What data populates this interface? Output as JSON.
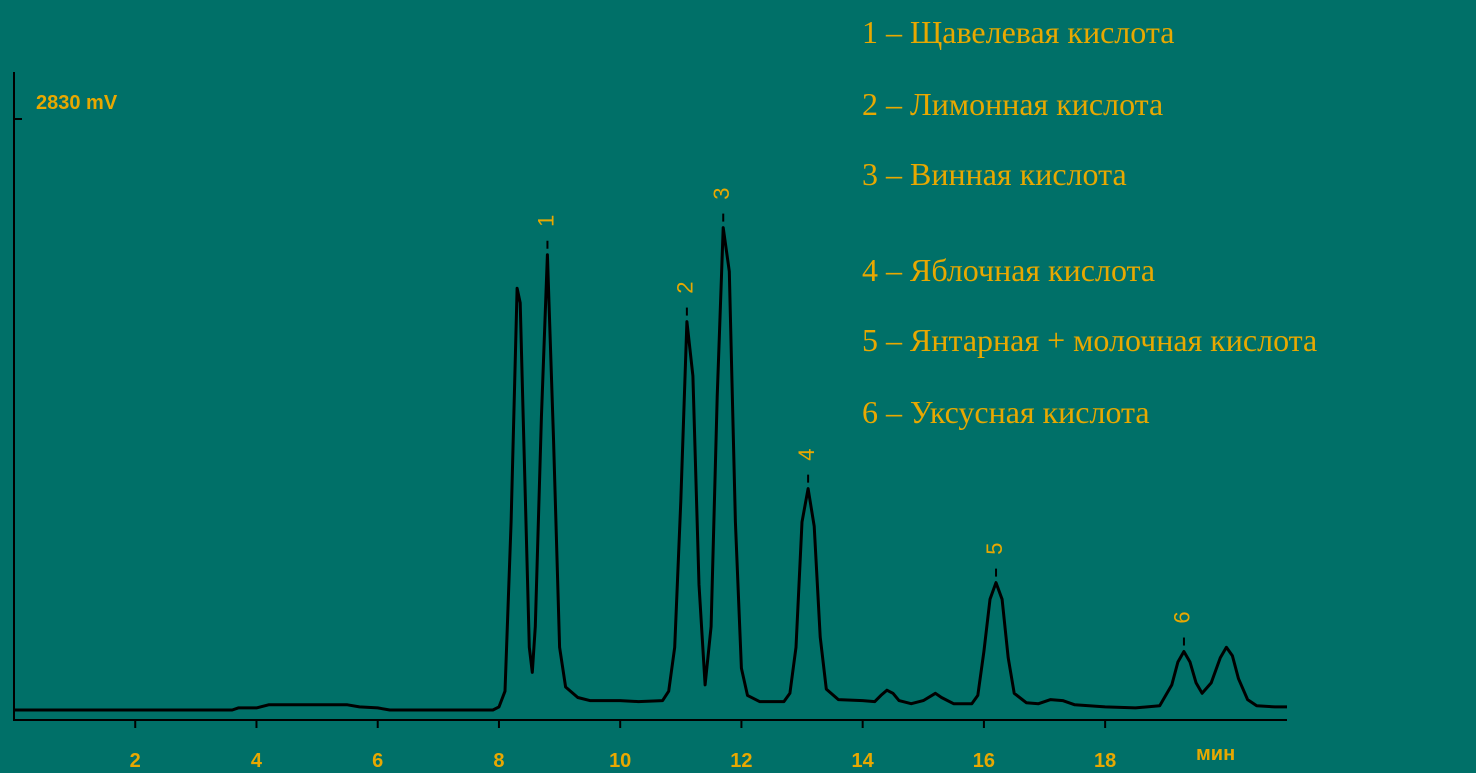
{
  "chart_data": {
    "type": "line",
    "ylabel": "2830 mV",
    "xunit_label": "мин",
    "xlim": [
      0,
      21
    ],
    "ylim": [
      0,
      2830
    ],
    "x_ticks": [
      2,
      4,
      6,
      8,
      10,
      12,
      14,
      16,
      18
    ],
    "line_color": "#000000",
    "text_color": "#e8a800",
    "background": "#007068",
    "baseline_mV": 0,
    "series": [
      {
        "points": [
          [
            0,
            0
          ],
          [
            3.6,
            0
          ],
          [
            3.7,
            10
          ],
          [
            4.0,
            10
          ],
          [
            4.2,
            25
          ],
          [
            5.5,
            25
          ],
          [
            5.7,
            15
          ],
          [
            6.0,
            10
          ],
          [
            6.2,
            0
          ],
          [
            7.9,
            0
          ],
          [
            8.0,
            15
          ],
          [
            8.1,
            90
          ],
          [
            8.2,
            900
          ],
          [
            8.3,
            2020
          ],
          [
            8.35,
            1950
          ],
          [
            8.4,
            1400
          ],
          [
            8.5,
            300
          ],
          [
            8.55,
            180
          ],
          [
            8.6,
            400
          ],
          [
            8.7,
            1400
          ],
          [
            8.8,
            2180
          ],
          [
            8.9,
            1300
          ],
          [
            9.0,
            300
          ],
          [
            9.1,
            110
          ],
          [
            9.3,
            60
          ],
          [
            9.5,
            45
          ],
          [
            10.0,
            45
          ],
          [
            10.3,
            40
          ],
          [
            10.7,
            45
          ],
          [
            10.8,
            90
          ],
          [
            10.9,
            300
          ],
          [
            11.0,
            1000
          ],
          [
            11.1,
            1860
          ],
          [
            11.2,
            1600
          ],
          [
            11.3,
            600
          ],
          [
            11.4,
            120
          ],
          [
            11.5,
            400
          ],
          [
            11.6,
            1500
          ],
          [
            11.7,
            2310
          ],
          [
            11.8,
            2100
          ],
          [
            11.9,
            900
          ],
          [
            12.0,
            200
          ],
          [
            12.1,
            70
          ],
          [
            12.3,
            40
          ],
          [
            12.7,
            40
          ],
          [
            12.8,
            80
          ],
          [
            12.9,
            300
          ],
          [
            13.0,
            900
          ],
          [
            13.1,
            1060
          ],
          [
            13.2,
            880
          ],
          [
            13.3,
            350
          ],
          [
            13.4,
            100
          ],
          [
            13.6,
            50
          ],
          [
            14.0,
            45
          ],
          [
            14.2,
            40
          ],
          [
            14.3,
            70
          ],
          [
            14.4,
            95
          ],
          [
            14.5,
            80
          ],
          [
            14.6,
            45
          ],
          [
            14.8,
            30
          ],
          [
            15.0,
            45
          ],
          [
            15.2,
            80
          ],
          [
            15.3,
            60
          ],
          [
            15.5,
            30
          ],
          [
            15.8,
            30
          ],
          [
            15.9,
            70
          ],
          [
            16.0,
            280
          ],
          [
            16.1,
            530
          ],
          [
            16.2,
            610
          ],
          [
            16.3,
            530
          ],
          [
            16.4,
            250
          ],
          [
            16.5,
            80
          ],
          [
            16.7,
            35
          ],
          [
            16.9,
            30
          ],
          [
            17.1,
            50
          ],
          [
            17.3,
            45
          ],
          [
            17.5,
            25
          ],
          [
            18.0,
            15
          ],
          [
            18.5,
            10
          ],
          [
            18.9,
            20
          ],
          [
            19.1,
            120
          ],
          [
            19.2,
            230
          ],
          [
            19.3,
            280
          ],
          [
            19.4,
            230
          ],
          [
            19.5,
            130
          ],
          [
            19.6,
            80
          ],
          [
            19.75,
            130
          ],
          [
            19.9,
            250
          ],
          [
            20.0,
            300
          ],
          [
            20.1,
            260
          ],
          [
            20.2,
            150
          ],
          [
            20.35,
            50
          ],
          [
            20.5,
            20
          ],
          [
            20.8,
            15
          ],
          [
            21.0,
            15
          ]
        ]
      }
    ],
    "peak_annotations": [
      {
        "label": "1",
        "x": 8.8,
        "y": 2180
      },
      {
        "label": "2",
        "x": 11.1,
        "y": 1860
      },
      {
        "label": "3",
        "x": 11.7,
        "y": 2310
      },
      {
        "label": "4",
        "x": 13.1,
        "y": 1060
      },
      {
        "label": "5",
        "x": 16.2,
        "y": 610
      },
      {
        "label": "6",
        "x": 19.3,
        "y": 280
      }
    ],
    "legend": [
      "1 – Щавелевая  кислота",
      "2 – Лимонная  кислота",
      "3 – Винная  кислота",
      "4 – Яблочная кислота",
      "5 – Янтарная + молочная кислота",
      "6 – Уксусная кислота"
    ]
  }
}
